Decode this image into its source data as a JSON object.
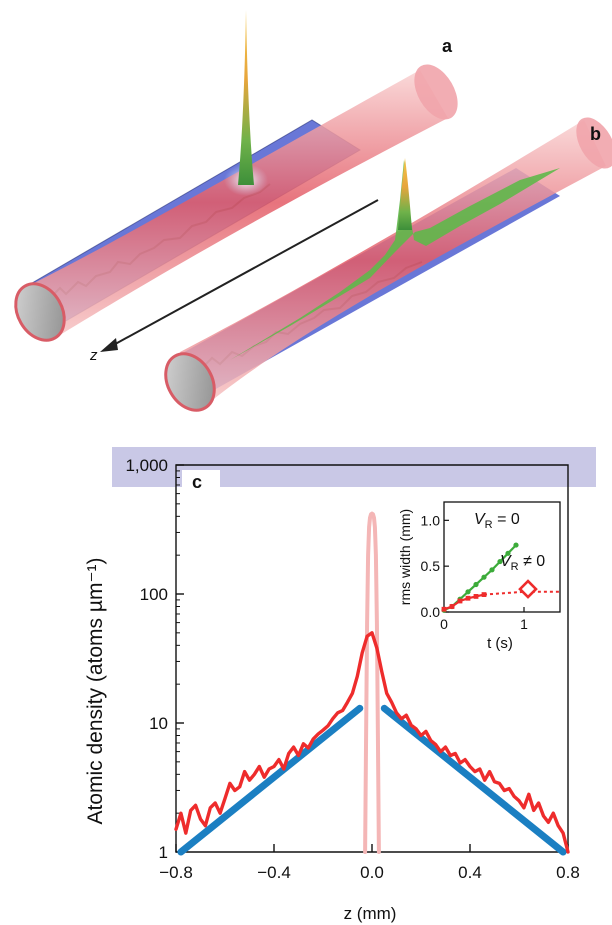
{
  "panels": {
    "a": {
      "label": "a"
    },
    "b": {
      "label": "b"
    },
    "c": {
      "label": "c"
    }
  },
  "illustration": {
    "axis_label": "z"
  },
  "chart_data": {
    "type": "line",
    "ylabel": "Atomic density (atoms µm⁻¹)",
    "xlabel": "z (mm)",
    "xlim": [
      -0.8,
      0.8
    ],
    "ylim": [
      1,
      1000
    ],
    "yscale": "log",
    "x_ticks": [
      -0.8,
      -0.4,
      0.0,
      0.4,
      0.8
    ],
    "x_tick_labels": [
      "−0.8",
      "−0.4",
      "0.0",
      "0.4",
      "0.8"
    ],
    "y_ticks": [
      1,
      10,
      100,
      1000
    ],
    "y_tick_labels": [
      "1",
      "10",
      "100",
      "1,000"
    ],
    "series": [
      {
        "name": "",
        "color": "#ee2c2c",
        "x": [
          -0.8,
          -0.78,
          -0.76,
          -0.74,
          -0.72,
          -0.7,
          -0.68,
          -0.66,
          -0.64,
          -0.62,
          -0.6,
          -0.58,
          -0.56,
          -0.54,
          -0.52,
          -0.5,
          -0.48,
          -0.46,
          -0.44,
          -0.42,
          -0.4,
          -0.38,
          -0.36,
          -0.34,
          -0.32,
          -0.3,
          -0.28,
          -0.26,
          -0.24,
          -0.22,
          -0.2,
          -0.18,
          -0.16,
          -0.14,
          -0.12,
          -0.1,
          -0.08,
          -0.06,
          -0.04,
          -0.02,
          0.0,
          0.02,
          0.04,
          0.06,
          0.08,
          0.1,
          0.12,
          0.14,
          0.16,
          0.18,
          0.2,
          0.22,
          0.24,
          0.26,
          0.28,
          0.3,
          0.32,
          0.34,
          0.36,
          0.38,
          0.4,
          0.42,
          0.44,
          0.46,
          0.48,
          0.5,
          0.52,
          0.54,
          0.56,
          0.58,
          0.6,
          0.62,
          0.64,
          0.66,
          0.68,
          0.7,
          0.72,
          0.74,
          0.76,
          0.78,
          0.8
        ],
        "y": [
          1.5,
          2.0,
          1.4,
          2.1,
          2.3,
          1.8,
          1.6,
          2.2,
          2.4,
          2.0,
          2.6,
          3.4,
          3.0,
          3.2,
          4.2,
          3.6,
          4.0,
          4.6,
          3.8,
          4.4,
          4.6,
          5.2,
          4.4,
          5.8,
          6.5,
          5.6,
          6.9,
          6.4,
          7.5,
          8.2,
          8.8,
          9.5,
          10.8,
          12.0,
          12.5,
          14.5,
          17,
          23,
          35,
          47,
          50,
          38,
          25,
          17,
          14.5,
          12.0,
          10.8,
          11.5,
          9.6,
          9.0,
          8.0,
          8.6,
          7.3,
          6.8,
          6.0,
          6.5,
          5.6,
          5.8,
          4.9,
          5.2,
          4.6,
          4.2,
          4.4,
          3.6,
          4.2,
          3.5,
          3.4,
          3.0,
          3.1,
          2.7,
          2.5,
          2.2,
          2.8,
          2.1,
          2.4,
          1.9,
          1.7,
          2.0,
          1.6,
          1.4,
          1.0
        ]
      },
      {
        "name": "",
        "color": "#f4b6b6",
        "x": [
          -0.028,
          -0.024,
          -0.02,
          -0.016,
          -0.012,
          -0.008,
          -0.004,
          0.0,
          0.004,
          0.008,
          0.012,
          0.016,
          0.02,
          0.024,
          0.028
        ],
        "y": [
          1,
          8,
          60,
          200,
          330,
          390,
          415,
          420,
          415,
          390,
          330,
          200,
          60,
          8,
          1
        ]
      },
      {
        "name": "",
        "color": "#1b7fc2",
        "x": [
          -0.78,
          -0.05
        ],
        "y": [
          1.0,
          13
        ]
      },
      {
        "name": "",
        "color": "#1b7fc2",
        "x": [
          0.05,
          0.78
        ],
        "y": [
          13,
          1.0
        ]
      }
    ],
    "inset": {
      "type": "line",
      "xlabel": "t (s)",
      "ylabel": "rms width (mm)",
      "xlim": [
        0,
        1.45
      ],
      "ylim": [
        0,
        1.2
      ],
      "x_ticks": [
        0,
        1
      ],
      "x_tick_labels": [
        "0",
        "1"
      ],
      "y_ticks": [
        0.0,
        0.5,
        1.0
      ],
      "y_tick_labels": [
        "0.0",
        "0.5",
        "1.0"
      ],
      "annotations": [
        {
          "text": "V",
          "sub": "R",
          "rest": " = 0",
          "color": "#3cab3a"
        },
        {
          "text": "V",
          "sub": "R",
          "rest": " ≠ 0",
          "color": "#ee2c2c"
        }
      ],
      "series": [
        {
          "name": "",
          "color": "#3cab3a",
          "x": [
            0.0,
            0.1,
            0.2,
            0.3,
            0.4,
            0.5,
            0.6,
            0.7,
            0.8,
            0.9
          ],
          "y": [
            0.02,
            0.06,
            0.14,
            0.22,
            0.3,
            0.38,
            0.46,
            0.55,
            0.64,
            0.73
          ]
        },
        {
          "name": "",
          "color": "#ee2c2c",
          "x": [
            0.0,
            0.1,
            0.2,
            0.3,
            0.4,
            0.5
          ],
          "y": [
            0.03,
            0.06,
            0.12,
            0.15,
            0.17,
            0.19
          ]
        },
        {
          "name": "",
          "color": "#ee2c2c",
          "x": [
            0.5,
            1.0,
            1.45
          ],
          "y": [
            0.19,
            0.22,
            0.22
          ]
        }
      ],
      "markers": [
        {
          "x": 1.05,
          "y": 0.25,
          "shape": "diamond",
          "color": "#ee2c2c"
        }
      ]
    }
  }
}
